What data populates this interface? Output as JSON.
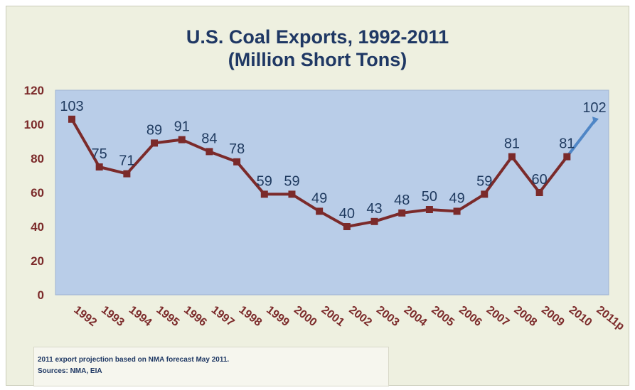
{
  "chart_data": {
    "type": "line",
    "title": "U.S. Coal Exports, 1992-2011",
    "subtitle": "(Million Short Tons)",
    "xlabel": "",
    "ylabel": "",
    "ylim": [
      0,
      120
    ],
    "yticks": [
      "0",
      "20",
      "40",
      "60",
      "80",
      "100",
      "120"
    ],
    "categories": [
      "1992",
      "1993",
      "1994",
      "1995",
      "1996",
      "1997",
      "1998",
      "1999",
      "2000",
      "2001",
      "2002",
      "2003",
      "2004",
      "2005",
      "2006",
      "2007",
      "2008",
      "2009",
      "2010",
      "2011p"
    ],
    "values": [
      103,
      75,
      71,
      89,
      91,
      84,
      78,
      59,
      59,
      49,
      40,
      43,
      48,
      50,
      49,
      59,
      81,
      60,
      81,
      102
    ],
    "data_labels": [
      "103",
      "75",
      "71",
      "89",
      "91",
      "84",
      "78",
      "59",
      "59",
      "49",
      "40",
      "43",
      "48",
      "50",
      "49",
      "59",
      "81",
      "60",
      "81",
      "102"
    ],
    "projected_from_index": 18,
    "grid": false,
    "legend": "none",
    "colors": {
      "actual": "#7b2a2a",
      "projected": "#4f86c6",
      "plot_bg": "#b9cde8",
      "label": "#1f3a5f",
      "axis_text": "#7b2a2a"
    }
  },
  "note": {
    "line1": "2011 export projection based on NMA forecast May 2011.",
    "line2": "Sources: NMA, EIA"
  }
}
